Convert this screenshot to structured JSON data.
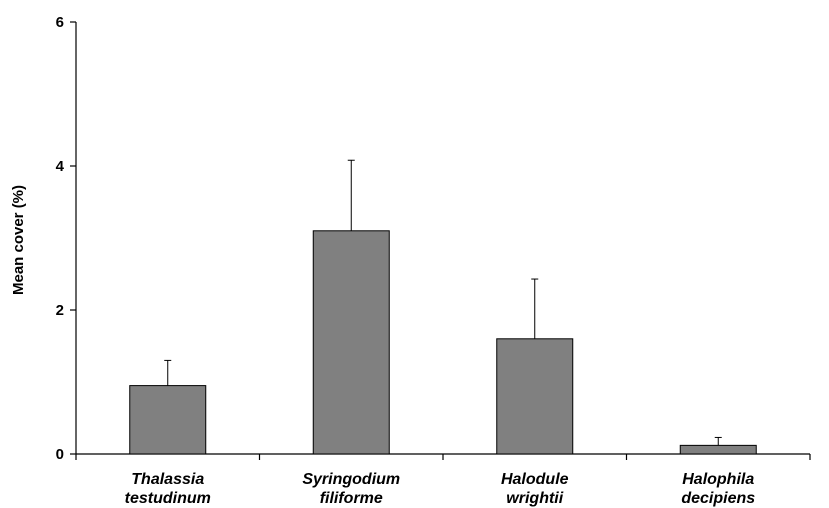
{
  "chart_data": {
    "type": "bar",
    "title": "",
    "xlabel": "",
    "ylabel": "Mean cover (%)",
    "ylim": [
      0,
      6
    ],
    "yticks": [
      0,
      2,
      4,
      6
    ],
    "grid": false,
    "categories": [
      [
        "Thalassia",
        "testudinum"
      ],
      [
        "Syringodium",
        "filiforme"
      ],
      [
        "Halodule",
        "wrightii"
      ],
      [
        "Halophila",
        "decipiens"
      ]
    ],
    "values": [
      0.95,
      3.1,
      1.6,
      0.12
    ],
    "errors": [
      0.35,
      0.98,
      0.83,
      0.11
    ],
    "colors": {
      "bar": "#808080",
      "bar_edge": "#000000",
      "axis": "#000000"
    }
  }
}
